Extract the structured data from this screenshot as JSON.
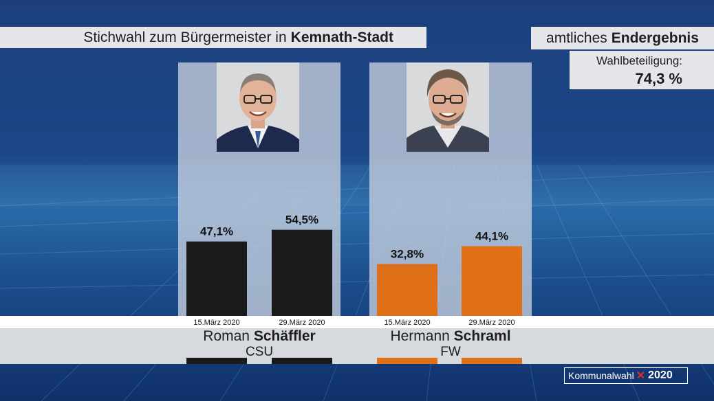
{
  "header": {
    "title_prefix": "Stichwahl zum Bürgermeister in",
    "title_place": "Kemnath-Stadt",
    "result_prefix": "amtliches",
    "result_bold": "Endergebnis",
    "turnout_label": "Wahlbeteiligung:",
    "turnout_value": "74,3 %"
  },
  "candidates": [
    {
      "first": "Roman",
      "last": "Schäffler",
      "party": "CSU"
    },
    {
      "first": "Hermann",
      "last": "Schraml",
      "party": "FW"
    }
  ],
  "logo": {
    "text": "Kommunalwahl",
    "year": "2020"
  },
  "colors": {
    "csu": "#1a1a1a",
    "fw": "#e07018",
    "panel": "#c8d0de"
  },
  "chart_data": {
    "type": "bar",
    "title": "Stichwahl zum Bürgermeister in Kemnath-Stadt",
    "categories": [
      "15.März 2020",
      "29.März 2020"
    ],
    "series": [
      {
        "name": "Roman Schäffler",
        "values": [
          47.1,
          54.5
        ],
        "labels": [
          "47,1%",
          "54,5%"
        ],
        "color": "#1a1a1a"
      },
      {
        "name": "Hermann Schraml",
        "values": [
          32.8,
          44.1
        ],
        "labels": [
          "32,8%",
          "44,1%"
        ],
        "color": "#e07018"
      }
    ],
    "ylim": [
      0,
      100
    ]
  }
}
